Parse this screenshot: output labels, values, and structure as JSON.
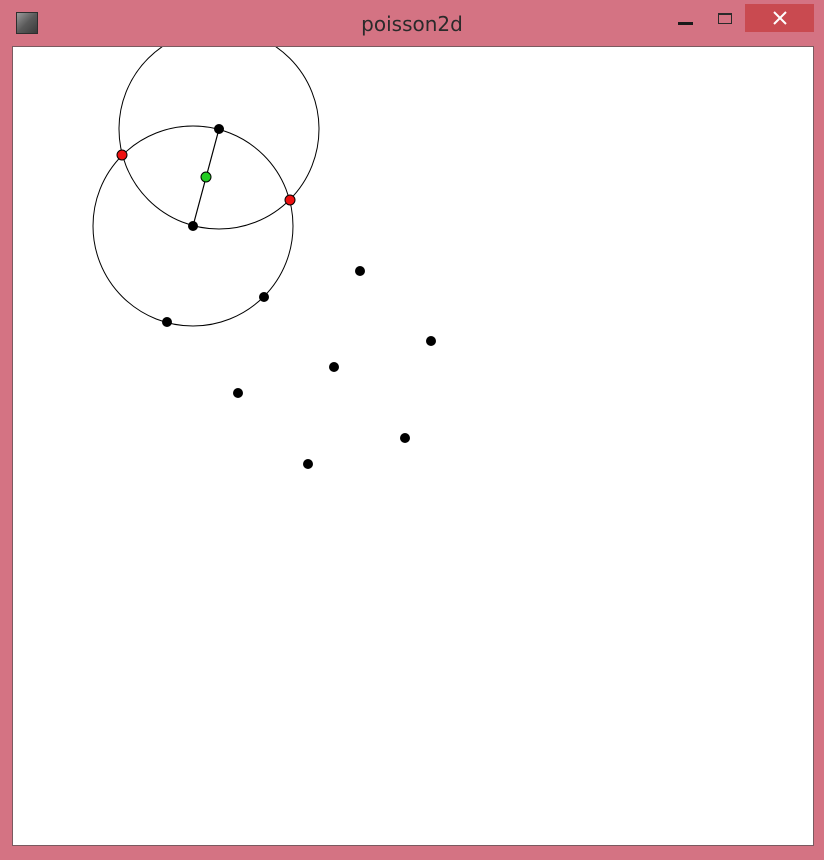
{
  "window": {
    "title": "poisson2d",
    "icons": {
      "app": "app-icon",
      "minimize": "minimize-icon",
      "maximize": "maximize-icon",
      "close": "close-icon"
    },
    "colors": {
      "frame": "#d47383",
      "close_button": "#c94a50"
    }
  },
  "plot": {
    "colors": {
      "point": "#000000",
      "intersection": "#ee1111",
      "midpoint": "#22cc22",
      "stroke": "#000000"
    },
    "circles": [
      {
        "name": "circle-upper",
        "center_ref": "point-a"
      },
      {
        "name": "circle-lower",
        "center_ref": "point-b"
      }
    ],
    "points": [
      {
        "name": "point-a",
        "role": "circle-center"
      },
      {
        "name": "point-b",
        "role": "circle-center"
      },
      {
        "name": "point-c",
        "role": "sample"
      },
      {
        "name": "point-d",
        "role": "sample"
      },
      {
        "name": "point-e",
        "role": "sample"
      },
      {
        "name": "point-f",
        "role": "sample"
      },
      {
        "name": "point-g",
        "role": "sample"
      },
      {
        "name": "point-h",
        "role": "sample"
      },
      {
        "name": "point-i",
        "role": "sample"
      },
      {
        "name": "point-j",
        "role": "sample"
      }
    ],
    "intersections": 2,
    "midpoints": 1
  }
}
